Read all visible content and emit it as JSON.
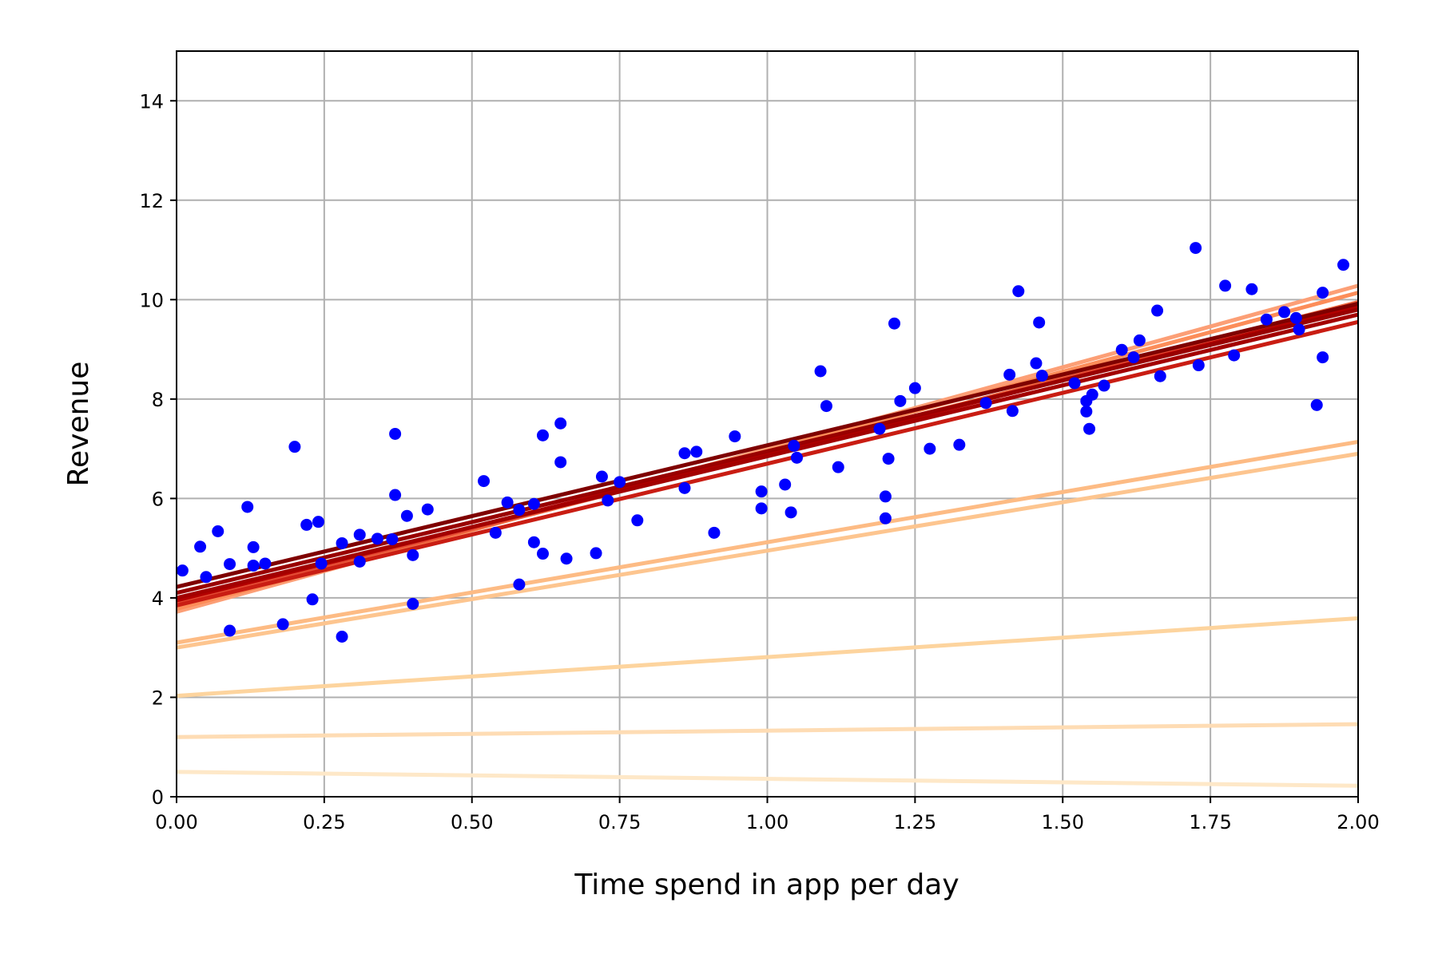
{
  "chart_data": {
    "type": "scatter",
    "title": "",
    "xlabel": "Time spend in app per day",
    "ylabel": "Revenue",
    "xlim": [
      0,
      2
    ],
    "ylim": [
      0,
      15
    ],
    "xticks": [
      "0.00",
      "0.25",
      "0.50",
      "0.75",
      "1.00",
      "1.25",
      "1.50",
      "1.75",
      "2.00"
    ],
    "yticks": [
      "0",
      "2",
      "4",
      "6",
      "8",
      "10",
      "12",
      "14"
    ],
    "grid": true,
    "legend": "none",
    "colors": {
      "points": "#0000ff",
      "grid": "#b0b0b0",
      "axes": "#000000"
    },
    "fit_lines": [
      {
        "intercept": 0.5,
        "slope": -0.14,
        "color": "#fee8c8"
      },
      {
        "intercept": 1.2,
        "slope": 0.13,
        "color": "#fedcb4"
      },
      {
        "intercept": 2.03,
        "slope": 0.78,
        "color": "#fdd49e"
      },
      {
        "intercept": 3.0,
        "slope": 1.95,
        "color": "#fdc58f"
      },
      {
        "intercept": 3.1,
        "slope": 2.02,
        "color": "#fdbb84"
      },
      {
        "intercept": 3.72,
        "slope": 3.28,
        "color": "#fc9f76"
      },
      {
        "intercept": 3.78,
        "slope": 3.18,
        "color": "#fc8d59"
      },
      {
        "intercept": 3.85,
        "slope": 3.05,
        "color": "#f06a42"
      },
      {
        "intercept": 3.9,
        "slope": 3.0,
        "color": "#e34a33"
      },
      {
        "intercept": 3.85,
        "slope": 2.85,
        "color": "#c91d13"
      },
      {
        "intercept": 3.95,
        "slope": 2.95,
        "color": "#b30000"
      },
      {
        "intercept": 4.0,
        "slope": 2.85,
        "color": "#a30000"
      },
      {
        "intercept": 4.1,
        "slope": 2.85,
        "color": "#990000"
      },
      {
        "intercept": 4.22,
        "slope": 2.85,
        "color": "#7f0000"
      }
    ],
    "points": [
      {
        "x": 0.01,
        "y": 4.55
      },
      {
        "x": 0.04,
        "y": 5.03
      },
      {
        "x": 0.05,
        "y": 4.42
      },
      {
        "x": 0.07,
        "y": 5.34
      },
      {
        "x": 0.09,
        "y": 4.68
      },
      {
        "x": 0.09,
        "y": 3.34
      },
      {
        "x": 0.12,
        "y": 5.83
      },
      {
        "x": 0.13,
        "y": 5.02
      },
      {
        "x": 0.13,
        "y": 4.65
      },
      {
        "x": 0.15,
        "y": 4.69
      },
      {
        "x": 0.18,
        "y": 3.47
      },
      {
        "x": 0.2,
        "y": 7.04
      },
      {
        "x": 0.22,
        "y": 5.47
      },
      {
        "x": 0.23,
        "y": 3.97
      },
      {
        "x": 0.24,
        "y": 5.53
      },
      {
        "x": 0.245,
        "y": 4.69
      },
      {
        "x": 0.28,
        "y": 5.1
      },
      {
        "x": 0.28,
        "y": 3.22
      },
      {
        "x": 0.31,
        "y": 5.27
      },
      {
        "x": 0.31,
        "y": 4.73
      },
      {
        "x": 0.34,
        "y": 5.19
      },
      {
        "x": 0.365,
        "y": 5.18
      },
      {
        "x": 0.37,
        "y": 6.07
      },
      {
        "x": 0.37,
        "y": 7.3
      },
      {
        "x": 0.39,
        "y": 5.65
      },
      {
        "x": 0.4,
        "y": 4.86
      },
      {
        "x": 0.4,
        "y": 3.88
      },
      {
        "x": 0.425,
        "y": 5.78
      },
      {
        "x": 0.52,
        "y": 6.35
      },
      {
        "x": 0.54,
        "y": 5.31
      },
      {
        "x": 0.56,
        "y": 5.92
      },
      {
        "x": 0.58,
        "y": 5.77
      },
      {
        "x": 0.58,
        "y": 4.27
      },
      {
        "x": 0.605,
        "y": 5.89
      },
      {
        "x": 0.605,
        "y": 5.12
      },
      {
        "x": 0.62,
        "y": 7.27
      },
      {
        "x": 0.62,
        "y": 4.89
      },
      {
        "x": 0.65,
        "y": 6.73
      },
      {
        "x": 0.65,
        "y": 7.51
      },
      {
        "x": 0.66,
        "y": 4.79
      },
      {
        "x": 0.71,
        "y": 4.9
      },
      {
        "x": 0.72,
        "y": 6.44
      },
      {
        "x": 0.73,
        "y": 5.96
      },
      {
        "x": 0.75,
        "y": 6.33
      },
      {
        "x": 0.78,
        "y": 5.56
      },
      {
        "x": 0.86,
        "y": 6.91
      },
      {
        "x": 0.86,
        "y": 6.21
      },
      {
        "x": 0.88,
        "y": 6.94
      },
      {
        "x": 0.91,
        "y": 5.31
      },
      {
        "x": 0.945,
        "y": 7.25
      },
      {
        "x": 0.99,
        "y": 6.14
      },
      {
        "x": 0.99,
        "y": 5.8
      },
      {
        "x": 1.03,
        "y": 6.28
      },
      {
        "x": 1.04,
        "y": 5.72
      },
      {
        "x": 1.045,
        "y": 7.06
      },
      {
        "x": 1.05,
        "y": 6.82
      },
      {
        "x": 1.09,
        "y": 8.56
      },
      {
        "x": 1.1,
        "y": 7.86
      },
      {
        "x": 1.12,
        "y": 6.63
      },
      {
        "x": 1.19,
        "y": 7.4
      },
      {
        "x": 1.2,
        "y": 6.04
      },
      {
        "x": 1.2,
        "y": 5.6
      },
      {
        "x": 1.205,
        "y": 6.8
      },
      {
        "x": 1.215,
        "y": 9.52
      },
      {
        "x": 1.225,
        "y": 7.96
      },
      {
        "x": 1.25,
        "y": 8.22
      },
      {
        "x": 1.275,
        "y": 7.0
      },
      {
        "x": 1.325,
        "y": 7.08
      },
      {
        "x": 1.37,
        "y": 7.92
      },
      {
        "x": 1.41,
        "y": 8.49
      },
      {
        "x": 1.415,
        "y": 7.76
      },
      {
        "x": 1.425,
        "y": 10.17
      },
      {
        "x": 1.455,
        "y": 8.72
      },
      {
        "x": 1.46,
        "y": 9.54
      },
      {
        "x": 1.465,
        "y": 8.47
      },
      {
        "x": 1.52,
        "y": 8.32
      },
      {
        "x": 1.54,
        "y": 7.96
      },
      {
        "x": 1.54,
        "y": 7.75
      },
      {
        "x": 1.545,
        "y": 7.4
      },
      {
        "x": 1.55,
        "y": 8.09
      },
      {
        "x": 1.57,
        "y": 8.27
      },
      {
        "x": 1.6,
        "y": 8.99
      },
      {
        "x": 1.62,
        "y": 8.84
      },
      {
        "x": 1.63,
        "y": 9.18
      },
      {
        "x": 1.66,
        "y": 9.78
      },
      {
        "x": 1.665,
        "y": 8.46
      },
      {
        "x": 1.725,
        "y": 11.04
      },
      {
        "x": 1.73,
        "y": 8.68
      },
      {
        "x": 1.775,
        "y": 10.28
      },
      {
        "x": 1.79,
        "y": 8.88
      },
      {
        "x": 1.82,
        "y": 10.21
      },
      {
        "x": 1.845,
        "y": 9.6
      },
      {
        "x": 1.875,
        "y": 9.75
      },
      {
        "x": 1.895,
        "y": 9.63
      },
      {
        "x": 1.9,
        "y": 9.4
      },
      {
        "x": 1.93,
        "y": 7.88
      },
      {
        "x": 1.94,
        "y": 8.84
      },
      {
        "x": 1.94,
        "y": 10.14
      },
      {
        "x": 1.975,
        "y": 10.7
      }
    ]
  }
}
